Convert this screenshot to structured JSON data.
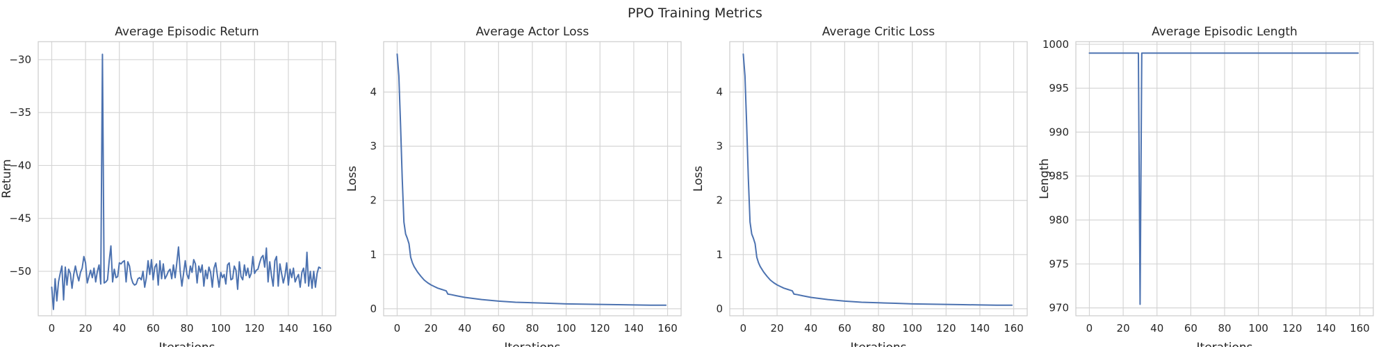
{
  "figure": {
    "suptitle": "PPO Training Metrics"
  },
  "colors": {
    "line": "#4c72b0",
    "grid": "#d5d5d5",
    "frame": "#cccccc",
    "text": "#262626"
  },
  "chart_data": [
    {
      "type": "line",
      "title": "Average Episodic Return",
      "xlabel": "Iterations",
      "ylabel": "Return",
      "xlim": [
        -8,
        168
      ],
      "ylim": [
        -54.2,
        -28.3
      ],
      "xticks": [
        0,
        20,
        40,
        60,
        80,
        100,
        120,
        140,
        160
      ],
      "yticks": [
        -30,
        -35,
        -40,
        -45,
        -50
      ],
      "grid": true,
      "series": [
        {
          "x": [
            0,
            1,
            2,
            3,
            4,
            5,
            6,
            7,
            8,
            9,
            10,
            11,
            12,
            13,
            14,
            15,
            16,
            17,
            18,
            19,
            20,
            21,
            22,
            23,
            24,
            25,
            26,
            27,
            28,
            29,
            30,
            31,
            32,
            33,
            34,
            35,
            36,
            37,
            38,
            39,
            40,
            41,
            42,
            43,
            44,
            45,
            46,
            47,
            48,
            49,
            50,
            51,
            52,
            53,
            54,
            55,
            56,
            57,
            58,
            59,
            60,
            61,
            62,
            63,
            64,
            65,
            66,
            67,
            68,
            69,
            70,
            71,
            72,
            73,
            74,
            75,
            76,
            77,
            78,
            79,
            80,
            81,
            82,
            83,
            84,
            85,
            86,
            87,
            88,
            89,
            90,
            91,
            92,
            93,
            94,
            95,
            96,
            97,
            98,
            99,
            100,
            101,
            102,
            103,
            104,
            105,
            106,
            107,
            108,
            109,
            110,
            111,
            112,
            113,
            114,
            115,
            116,
            117,
            118,
            119,
            120,
            121,
            122,
            123,
            124,
            125,
            126,
            127,
            128,
            129,
            130,
            131,
            132,
            133,
            134,
            135,
            136,
            137,
            138,
            139,
            140,
            141,
            142,
            143,
            144,
            145,
            146,
            147,
            148,
            149,
            150,
            151,
            152,
            153,
            154,
            155,
            156,
            157,
            158,
            159
          ],
          "values": [
            -51.5,
            -53.6,
            -50.7,
            -52.8,
            -51.0,
            -50.2,
            -49.5,
            -52.7,
            -49.6,
            -51.3,
            -49.8,
            -50.2,
            -51.6,
            -50.3,
            -49.5,
            -50.3,
            -50.9,
            -50.1,
            -49.7,
            -48.6,
            -49.2,
            -51.1,
            -50.5,
            -49.9,
            -50.6,
            -49.7,
            -51.0,
            -50.0,
            -49.4,
            -51.2,
            -29.5,
            -51.1,
            -51.0,
            -50.8,
            -49.0,
            -47.6,
            -51.0,
            -49.8,
            -50.6,
            -50.5,
            -49.2,
            -49.3,
            -49.1,
            -49.0,
            -51.0,
            -49.1,
            -49.5,
            -50.6,
            -51.1,
            -51.3,
            -51.2,
            -50.7,
            -50.6,
            -50.8,
            -50.0,
            -51.5,
            -50.6,
            -49.0,
            -50.3,
            -48.9,
            -50.8,
            -49.6,
            -49.3,
            -51.3,
            -49.0,
            -50.7,
            -49.3,
            -50.7,
            -50.4,
            -50.0,
            -49.8,
            -50.7,
            -49.4,
            -50.6,
            -49.2,
            -47.7,
            -50.0,
            -51.4,
            -50.2,
            -49.0,
            -50.3,
            -50.7,
            -49.5,
            -50.1,
            -48.9,
            -49.3,
            -51.1,
            -49.5,
            -50.1,
            -49.4,
            -51.4,
            -49.9,
            -50.7,
            -49.6,
            -50.1,
            -51.5,
            -49.7,
            -49.2,
            -50.4,
            -51.5,
            -50.1,
            -50.6,
            -50.3,
            -51.2,
            -49.4,
            -49.2,
            -50.8,
            -50.7,
            -49.5,
            -49.9,
            -51.7,
            -49.1,
            -50.5,
            -50.8,
            -49.4,
            -50.4,
            -49.7,
            -50.6,
            -50.2,
            -48.6,
            -50.2,
            -49.9,
            -49.8,
            -49.2,
            -48.7,
            -48.5,
            -49.6,
            -47.8,
            -51.0,
            -49.1,
            -50.4,
            -51.4,
            -49.0,
            -48.6,
            -51.4,
            -49.3,
            -50.2,
            -51.1,
            -50.4,
            -49.2,
            -51.3,
            -49.8,
            -50.6,
            -49.7,
            -51.0,
            -50.6,
            -50.3,
            -51.5,
            -50.1,
            -49.7,
            -51.1,
            -48.2,
            -51.4,
            -50.0,
            -51.6,
            -50.0,
            -51.5,
            -50.2,
            -49.6,
            -49.7
          ]
        }
      ]
    },
    {
      "type": "line",
      "title": "Average Actor Loss",
      "xlabel": "Iterations",
      "ylabel": "Loss",
      "xlim": [
        -8,
        168
      ],
      "ylim": [
        -0.13,
        4.93
      ],
      "xticks": [
        0,
        20,
        40,
        60,
        80,
        100,
        120,
        140,
        160
      ],
      "yticks": [
        0,
        1,
        2,
        3,
        4
      ],
      "grid": true,
      "series": [
        {
          "x": [
            0,
            1,
            2,
            3,
            4,
            5,
            6,
            7,
            8,
            9,
            10,
            12,
            14,
            16,
            18,
            20,
            22,
            24,
            26,
            28,
            29,
            30,
            32,
            35,
            40,
            50,
            60,
            70,
            80,
            90,
            100,
            110,
            120,
            130,
            140,
            150,
            159
          ],
          "values": [
            4.7,
            4.3,
            3.4,
            2.4,
            1.6,
            1.38,
            1.3,
            1.2,
            0.95,
            0.85,
            0.78,
            0.68,
            0.6,
            0.53,
            0.48,
            0.44,
            0.41,
            0.38,
            0.36,
            0.34,
            0.33,
            0.27,
            0.26,
            0.24,
            0.21,
            0.17,
            0.14,
            0.12,
            0.11,
            0.1,
            0.09,
            0.085,
            0.08,
            0.075,
            0.07,
            0.065,
            0.065
          ]
        }
      ]
    },
    {
      "type": "line",
      "title": "Average Critic Loss",
      "xlabel": "Iterations",
      "ylabel": "Loss",
      "xlim": [
        -8,
        168
      ],
      "ylim": [
        -0.13,
        4.93
      ],
      "xticks": [
        0,
        20,
        40,
        60,
        80,
        100,
        120,
        140,
        160
      ],
      "yticks": [
        0,
        1,
        2,
        3,
        4
      ],
      "grid": true,
      "series": [
        {
          "x": [
            0,
            1,
            2,
            3,
            4,
            5,
            6,
            7,
            8,
            9,
            10,
            12,
            14,
            16,
            18,
            20,
            22,
            24,
            26,
            28,
            29,
            30,
            32,
            35,
            40,
            50,
            60,
            70,
            80,
            90,
            100,
            110,
            120,
            130,
            140,
            150,
            159
          ],
          "values": [
            4.7,
            4.3,
            3.4,
            2.4,
            1.6,
            1.38,
            1.3,
            1.2,
            0.95,
            0.85,
            0.78,
            0.68,
            0.6,
            0.53,
            0.48,
            0.44,
            0.41,
            0.38,
            0.36,
            0.34,
            0.33,
            0.27,
            0.26,
            0.24,
            0.21,
            0.17,
            0.14,
            0.12,
            0.11,
            0.1,
            0.09,
            0.085,
            0.08,
            0.075,
            0.07,
            0.065,
            0.065
          ]
        }
      ]
    },
    {
      "type": "line",
      "title": "Average Episodic Length",
      "xlabel": "Iterations",
      "ylabel": "Length",
      "xlim": [
        -8,
        168
      ],
      "ylim": [
        969.1,
        1000.3
      ],
      "xticks": [
        0,
        20,
        40,
        60,
        80,
        100,
        120,
        140,
        160
      ],
      "yticks": [
        1000,
        995,
        990,
        985,
        980,
        975,
        970
      ],
      "grid": true,
      "series": [
        {
          "x": [
            0,
            29,
            30,
            31,
            159
          ],
          "values": [
            999,
            999,
            970.4,
            999,
            999
          ]
        }
      ]
    }
  ]
}
